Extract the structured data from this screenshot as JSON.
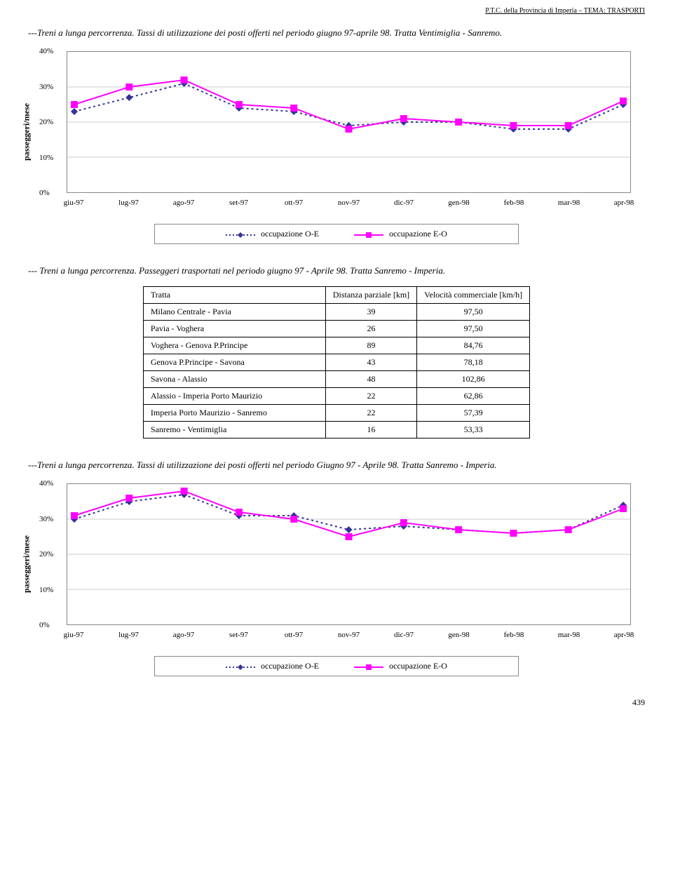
{
  "header": {
    "text": "P.T.C. della Provincia di Imperia – TEMA: TRASPORTI"
  },
  "page_number": "439",
  "captions": {
    "chart1": "---Treni a lunga percorrenza. Tassi di utilizzazione dei posti offerti nel periodo giugno 97-aprile 98. Tratta Ventimiglia - Sanremo.",
    "passengers": "--- Treni a lunga percorrenza. Passeggeri trasportati nel periodo giugno 97 - Aprile 98. Tratta Sanremo - Imperia.",
    "chart2": "---Treni a lunga percorrenza. Tassi di utilizzazione dei posti offerti nel periodo Giugno 97 - Aprile 98. Tratta Sanremo - Imperia."
  },
  "chart_common": {
    "ylabel": "passeggeri/mese",
    "ylim": [
      0,
      40
    ],
    "ytick_step": 10,
    "ytick_suffix": "%",
    "categories": [
      "giu-97",
      "lug-97",
      "ago-97",
      "set-97",
      "ott-97",
      "nov-97",
      "dic-97",
      "gen-98",
      "feb-98",
      "mar-98",
      "apr-98"
    ],
    "legend": {
      "oe": "occupazione O-E",
      "eo": "occupazione E-O"
    },
    "colors": {
      "oe_line": "#333399",
      "oe_marker": "#333399",
      "eo_line": "#ff00ff",
      "eo_marker": "#ff00ff",
      "grid": "#cccccc",
      "border": "#888888"
    },
    "line_width": 2,
    "marker_size": 5
  },
  "chart1": {
    "oe_values": [
      23,
      27,
      31,
      24,
      23,
      19,
      20,
      20,
      18,
      18,
      25
    ],
    "eo_values": [
      25,
      30,
      32,
      25,
      24,
      18,
      21,
      20,
      19,
      19,
      26
    ]
  },
  "chart2": {
    "oe_values": [
      30,
      35,
      37,
      31,
      31,
      27,
      28,
      27,
      26,
      27,
      34
    ],
    "eo_values": [
      31,
      36,
      38,
      32,
      30,
      25,
      29,
      27,
      26,
      27,
      33
    ]
  },
  "table": {
    "headers": [
      "Tratta",
      "Distanza parziale [km]",
      "Velocità commerciale [km/h]"
    ],
    "rows": [
      [
        "Milano Centrale - Pavia",
        "39",
        "97,50"
      ],
      [
        "Pavia - Voghera",
        "26",
        "97,50"
      ],
      [
        "Voghera - Genova P.Principe",
        "89",
        "84,76"
      ],
      [
        "Genova P.Principe - Savona",
        "43",
        "78,18"
      ],
      [
        "Savona - Alassio",
        "48",
        "102,86"
      ],
      [
        "Alassio - Imperia Porto Maurizio",
        "22",
        "62,86"
      ],
      [
        "Imperia Porto Maurizio - Sanremo",
        "22",
        "57,39"
      ],
      [
        "Sanremo - Ventimiglia",
        "16",
        "53,33"
      ]
    ]
  }
}
